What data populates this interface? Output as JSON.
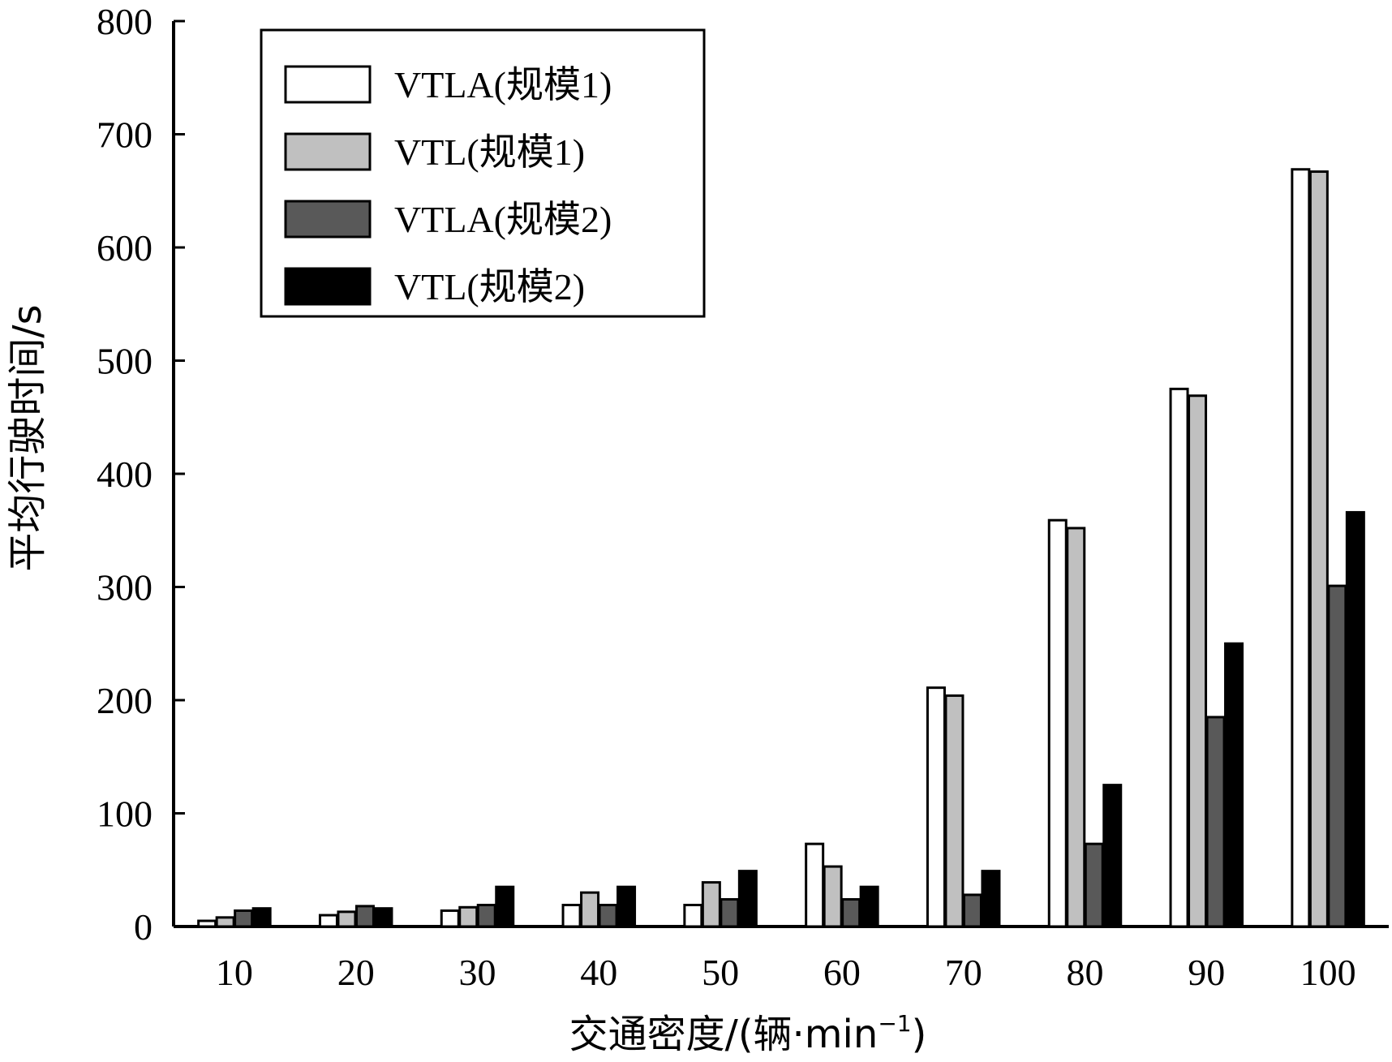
{
  "chart_data": {
    "type": "bar",
    "xlabel": "交通密度/(辆·min",
    "xlabel_sup": "−1",
    "xlabel_close": ")",
    "ylabel": "平均行驶时间/s",
    "ylim": [
      0,
      800
    ],
    "yticks": [
      "0",
      "100",
      "200",
      "300",
      "400",
      "500",
      "600",
      "700",
      "800"
    ],
    "categories": [
      "10",
      "20",
      "30",
      "40",
      "50",
      "60",
      "70",
      "80",
      "90",
      "100"
    ],
    "legend_position": "top-left",
    "series": [
      {
        "name": "VTLA(规模1)",
        "color": "#ffffff",
        "values": [
          5,
          10,
          14,
          19,
          19,
          73,
          211,
          359,
          475,
          669
        ]
      },
      {
        "name": "VTL(规模1)",
        "color": "#c0c0c0",
        "values": [
          8,
          13,
          17,
          30,
          39,
          53,
          204,
          352,
          469,
          667
        ]
      },
      {
        "name": "VTLA(规模2)",
        "color": "#595959",
        "values": [
          14,
          18,
          19,
          19,
          24,
          24,
          28,
          73,
          185,
          301
        ]
      },
      {
        "name": "VTL(规模2)",
        "color": "#000000",
        "values": [
          16,
          16,
          35,
          35,
          49,
          35,
          49,
          125,
          250,
          366
        ]
      }
    ]
  }
}
